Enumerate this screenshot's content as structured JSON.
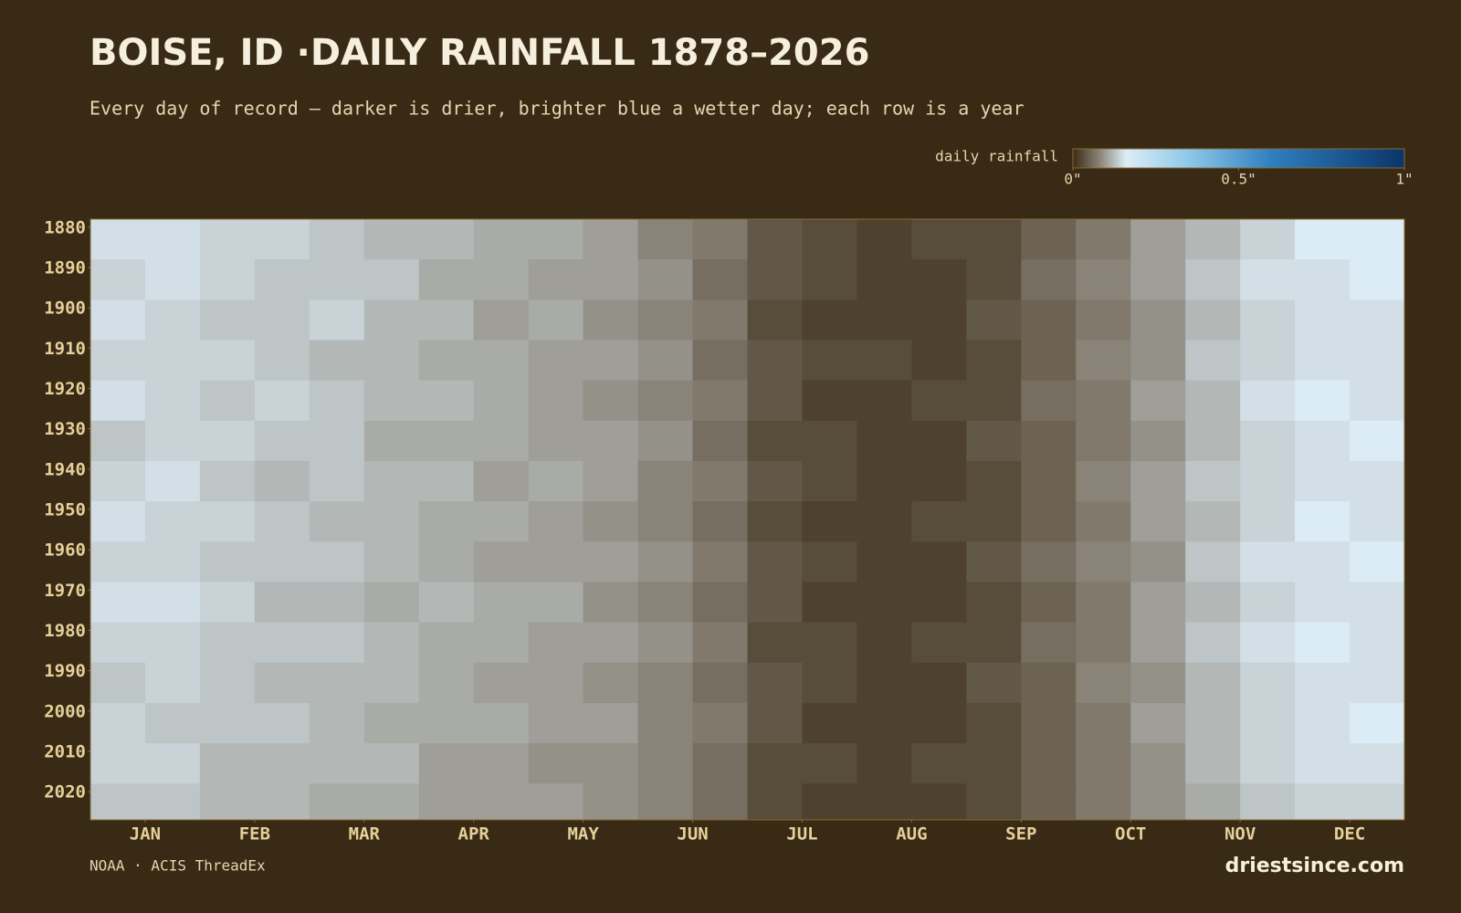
{
  "chart_data": {
    "type": "heatmap",
    "title": "BOISE, ID ·DAILY RAINFALL 1878–2026",
    "subtitle": "Every day of record — darker is drier, brighter blue a wetter day; each row is a year",
    "colorbar_label": "daily rainfall",
    "colorbar_ticks": [
      {
        "value": 0,
        "label": "0\""
      },
      {
        "value": 0.5,
        "label": "0.5\""
      },
      {
        "value": 1,
        "label": "1\""
      }
    ],
    "colorscale": [
      [
        0,
        "#3a2c16"
      ],
      [
        0.08,
        "#8a8478"
      ],
      [
        0.16,
        "#dcecf6"
      ],
      [
        0.35,
        "#8ec8ea"
      ],
      [
        0.6,
        "#2f7fbf"
      ],
      [
        1,
        "#0b3568"
      ]
    ],
    "xlim": [
      0,
      12
    ],
    "xticks": [
      {
        "value": 0.5,
        "label": "JAN"
      },
      {
        "value": 1.5,
        "label": "FEB"
      },
      {
        "value": 2.5,
        "label": "MAR"
      },
      {
        "value": 3.5,
        "label": "APR"
      },
      {
        "value": 4.5,
        "label": "MAY"
      },
      {
        "value": 5.5,
        "label": "JUN"
      },
      {
        "value": 6.5,
        "label": "JUL"
      },
      {
        "value": 7.5,
        "label": "AUG"
      },
      {
        "value": 8.5,
        "label": "SEP"
      },
      {
        "value": 9.5,
        "label": "OCT"
      },
      {
        "value": 10.5,
        "label": "NOV"
      },
      {
        "value": 11.5,
        "label": "DEC"
      }
    ],
    "ylim": [
      1878,
      2027
    ],
    "yticks": [
      1880,
      1890,
      1900,
      1910,
      1920,
      1930,
      1940,
      1950,
      1960,
      1970,
      1980,
      1990,
      2000,
      2010,
      2020
    ],
    "xbins": [
      0,
      0.5,
      1,
      1.5,
      2,
      2.5,
      3,
      3.5,
      4,
      4.5,
      5,
      5.5,
      6,
      6.5,
      7,
      7.5,
      8,
      8.5,
      9,
      9.5,
      10,
      10.5,
      11,
      11.5,
      12
    ],
    "ybins": [
      1878,
      1888,
      1898,
      1908,
      1918,
      1928,
      1938,
      1948,
      1958,
      1968,
      1978,
      1988,
      1998,
      2008,
      2018,
      2027
    ],
    "values": [
      [
        0.15,
        0.15,
        0.14,
        0.14,
        0.13,
        0.12,
        0.12,
        0.11,
        0.11,
        0.1,
        0.08,
        0.07,
        0.04,
        0.03,
        0.02,
        0.03,
        0.03,
        0.05,
        0.07,
        0.1,
        0.12,
        0.14,
        0.16,
        0.16
      ],
      [
        0.14,
        0.15,
        0.14,
        0.13,
        0.13,
        0.13,
        0.11,
        0.11,
        0.1,
        0.1,
        0.09,
        0.06,
        0.04,
        0.03,
        0.02,
        0.02,
        0.03,
        0.06,
        0.08,
        0.1,
        0.13,
        0.15,
        0.15,
        0.16
      ],
      [
        0.15,
        0.14,
        0.13,
        0.13,
        0.14,
        0.12,
        0.12,
        0.1,
        0.11,
        0.09,
        0.08,
        0.07,
        0.03,
        0.02,
        0.02,
        0.02,
        0.04,
        0.05,
        0.07,
        0.09,
        0.12,
        0.14,
        0.15,
        0.15
      ],
      [
        0.14,
        0.14,
        0.14,
        0.13,
        0.12,
        0.12,
        0.11,
        0.11,
        0.1,
        0.1,
        0.09,
        0.06,
        0.04,
        0.03,
        0.03,
        0.02,
        0.03,
        0.05,
        0.08,
        0.09,
        0.13,
        0.14,
        0.15,
        0.15
      ],
      [
        0.15,
        0.14,
        0.13,
        0.14,
        0.13,
        0.12,
        0.12,
        0.11,
        0.1,
        0.09,
        0.08,
        0.07,
        0.04,
        0.02,
        0.02,
        0.03,
        0.03,
        0.06,
        0.07,
        0.1,
        0.12,
        0.15,
        0.16,
        0.15
      ],
      [
        0.13,
        0.14,
        0.14,
        0.13,
        0.13,
        0.11,
        0.11,
        0.11,
        0.1,
        0.1,
        0.09,
        0.06,
        0.03,
        0.03,
        0.02,
        0.02,
        0.04,
        0.05,
        0.07,
        0.09,
        0.12,
        0.14,
        0.15,
        0.16
      ],
      [
        0.14,
        0.15,
        0.13,
        0.12,
        0.13,
        0.12,
        0.12,
        0.1,
        0.11,
        0.1,
        0.08,
        0.07,
        0.04,
        0.03,
        0.02,
        0.02,
        0.03,
        0.05,
        0.08,
        0.1,
        0.13,
        0.14,
        0.15,
        0.15
      ],
      [
        0.15,
        0.14,
        0.14,
        0.13,
        0.12,
        0.12,
        0.11,
        0.11,
        0.1,
        0.09,
        0.08,
        0.06,
        0.03,
        0.02,
        0.02,
        0.03,
        0.03,
        0.05,
        0.07,
        0.1,
        0.12,
        0.14,
        0.16,
        0.15
      ],
      [
        0.14,
        0.14,
        0.13,
        0.13,
        0.13,
        0.12,
        0.11,
        0.1,
        0.1,
        0.1,
        0.09,
        0.07,
        0.04,
        0.03,
        0.02,
        0.02,
        0.04,
        0.06,
        0.08,
        0.09,
        0.13,
        0.15,
        0.15,
        0.16
      ],
      [
        0.15,
        0.15,
        0.14,
        0.12,
        0.12,
        0.11,
        0.12,
        0.11,
        0.11,
        0.09,
        0.08,
        0.06,
        0.04,
        0.02,
        0.02,
        0.02,
        0.03,
        0.05,
        0.07,
        0.1,
        0.12,
        0.14,
        0.15,
        0.15
      ],
      [
        0.14,
        0.14,
        0.13,
        0.13,
        0.13,
        0.12,
        0.11,
        0.11,
        0.1,
        0.1,
        0.09,
        0.07,
        0.03,
        0.03,
        0.02,
        0.03,
        0.03,
        0.06,
        0.07,
        0.1,
        0.13,
        0.15,
        0.16,
        0.15
      ],
      [
        0.13,
        0.14,
        0.13,
        0.12,
        0.12,
        0.12,
        0.11,
        0.1,
        0.1,
        0.09,
        0.08,
        0.06,
        0.04,
        0.03,
        0.02,
        0.02,
        0.04,
        0.05,
        0.08,
        0.09,
        0.12,
        0.14,
        0.15,
        0.15
      ],
      [
        0.14,
        0.13,
        0.13,
        0.13,
        0.12,
        0.11,
        0.11,
        0.11,
        0.1,
        0.1,
        0.08,
        0.07,
        0.04,
        0.02,
        0.02,
        0.02,
        0.03,
        0.05,
        0.07,
        0.1,
        0.12,
        0.14,
        0.15,
        0.16
      ],
      [
        0.14,
        0.14,
        0.12,
        0.12,
        0.12,
        0.12,
        0.1,
        0.1,
        0.09,
        0.09,
        0.08,
        0.06,
        0.03,
        0.03,
        0.02,
        0.03,
        0.03,
        0.05,
        0.07,
        0.09,
        0.12,
        0.14,
        0.15,
        0.15
      ],
      [
        0.13,
        0.13,
        0.12,
        0.12,
        0.11,
        0.11,
        0.1,
        0.1,
        0.1,
        0.09,
        0.08,
        0.06,
        0.03,
        0.02,
        0.02,
        0.02,
        0.03,
        0.05,
        0.07,
        0.09,
        0.11,
        0.13,
        0.14,
        0.14
      ]
    ],
    "source": "NOAA · ACIS ThreadEx",
    "brand": "driestsince.com"
  }
}
